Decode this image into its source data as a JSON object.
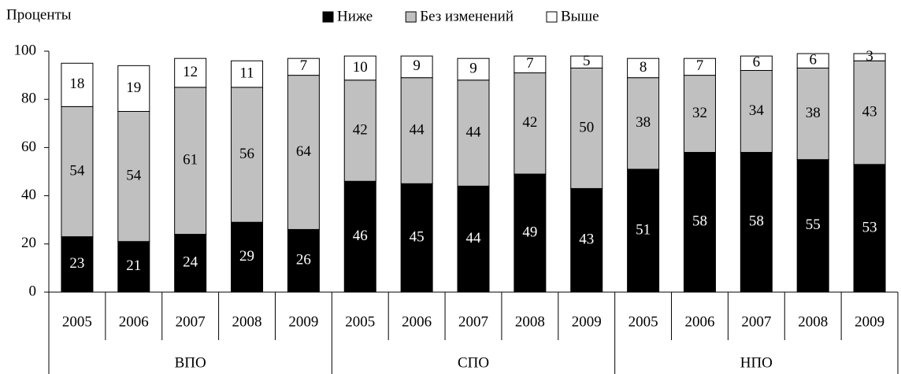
{
  "chart_data": {
    "type": "stacked_bar",
    "y_label": "Проценты",
    "categories": [
      "2005",
      "2006",
      "2007",
      "2008",
      "2009",
      "2005",
      "2006",
      "2007",
      "2008",
      "2009",
      "2005",
      "2006",
      "2007",
      "2008",
      "2009"
    ],
    "groups": [
      "ВПО",
      "СПО",
      "НПО"
    ],
    "series": [
      {
        "name": "Ниже",
        "color": "#000000",
        "values": [
          23,
          21,
          24,
          29,
          26,
          46,
          45,
          44,
          49,
          43,
          51,
          58,
          58,
          55,
          53
        ]
      },
      {
        "name": "Без изменений",
        "color": "#c0c0c0",
        "values": [
          54,
          54,
          61,
          56,
          64,
          42,
          44,
          44,
          42,
          50,
          38,
          32,
          34,
          38,
          43
        ]
      },
      {
        "name": "Выше",
        "color": "#ffffff",
        "values": [
          18,
          19,
          12,
          11,
          7,
          10,
          9,
          9,
          7,
          5,
          8,
          7,
          6,
          6,
          3
        ]
      }
    ],
    "ylim": [
      0,
      100
    ],
    "yticks": [
      0,
      20,
      40,
      60,
      80,
      100
    ],
    "legend": "top"
  }
}
